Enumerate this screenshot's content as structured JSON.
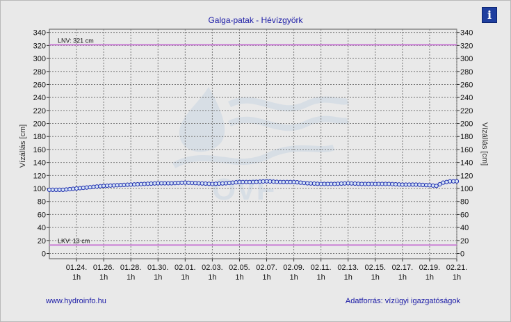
{
  "title": "Galga-patak - Hévízgyörk",
  "footer": {
    "left_link": "www.hydroinfo.hu",
    "right_text": "Adatforrás: vízügyi igazgatóságok"
  },
  "icons": {
    "info": "info-icon",
    "watermark": "ovf-water-drop-logo"
  },
  "watermark_text": "OVF",
  "colors": {
    "series": "#1f2fb0",
    "marker_fill": "#d6e4f5",
    "reference_line": "#c97bd4",
    "title": "#1a1aa6",
    "info_button": "#1f3f9f"
  },
  "chart_data": {
    "type": "line",
    "title": "Galga-patak - Hévízgyörk",
    "ylabel_left": "Vízállás [cm]",
    "ylabel_right": "Vízállás [cm]",
    "xlabel": "",
    "ylim": [
      -8,
      345
    ],
    "yticks": [
      0,
      20,
      40,
      60,
      80,
      100,
      120,
      140,
      160,
      180,
      200,
      220,
      240,
      260,
      280,
      300,
      320,
      340
    ],
    "xlim": [
      0,
      30
    ],
    "xticks": [
      {
        "x": 2,
        "date": "01.24.",
        "hour": "1h"
      },
      {
        "x": 4,
        "date": "01.26.",
        "hour": "1h"
      },
      {
        "x": 6,
        "date": "01.28.",
        "hour": "1h"
      },
      {
        "x": 8,
        "date": "01.30.",
        "hour": "1h"
      },
      {
        "x": 10,
        "date": "02.01.",
        "hour": "1h"
      },
      {
        "x": 12,
        "date": "02.03.",
        "hour": "1h"
      },
      {
        "x": 14,
        "date": "02.05.",
        "hour": "1h"
      },
      {
        "x": 16,
        "date": "02.07.",
        "hour": "1h"
      },
      {
        "x": 18,
        "date": "02.09.",
        "hour": "1h"
      },
      {
        "x": 20,
        "date": "02.11.",
        "hour": "1h"
      },
      {
        "x": 22,
        "date": "02.13.",
        "hour": "1h"
      },
      {
        "x": 24,
        "date": "02.15.",
        "hour": "1h"
      },
      {
        "x": 26,
        "date": "02.17.",
        "hour": "1h"
      },
      {
        "x": 28,
        "date": "02.19.",
        "hour": "1h"
      },
      {
        "x": 30,
        "date": "02.21.",
        "hour": "1h"
      }
    ],
    "grid": true,
    "reference_lines": [
      {
        "label": "LNV: 321 cm",
        "value": 321
      },
      {
        "label": "LKV: 13 cm",
        "value": 13
      }
    ],
    "series": [
      {
        "anchors": [
          [
            0,
            98
          ],
          [
            1,
            98
          ],
          [
            2,
            100
          ],
          [
            3,
            102
          ],
          [
            4,
            104
          ],
          [
            5,
            105
          ],
          [
            6,
            106
          ],
          [
            7,
            107
          ],
          [
            8,
            108
          ],
          [
            9,
            108
          ],
          [
            10,
            109
          ],
          [
            11,
            108
          ],
          [
            12,
            107
          ],
          [
            13,
            108
          ],
          [
            14,
            110
          ],
          [
            15,
            110
          ],
          [
            16,
            111
          ],
          [
            17,
            110
          ],
          [
            18,
            110
          ],
          [
            19,
            108
          ],
          [
            20,
            107
          ],
          [
            21,
            107
          ],
          [
            22,
            108
          ],
          [
            23,
            107
          ],
          [
            24,
            107
          ],
          [
            25,
            107
          ],
          [
            26,
            106
          ],
          [
            27,
            106
          ],
          [
            28,
            105
          ],
          [
            28.5,
            104
          ],
          [
            29,
            109
          ],
          [
            29.5,
            111
          ],
          [
            30,
            111
          ]
        ],
        "points_per_day": 4
      }
    ]
  }
}
